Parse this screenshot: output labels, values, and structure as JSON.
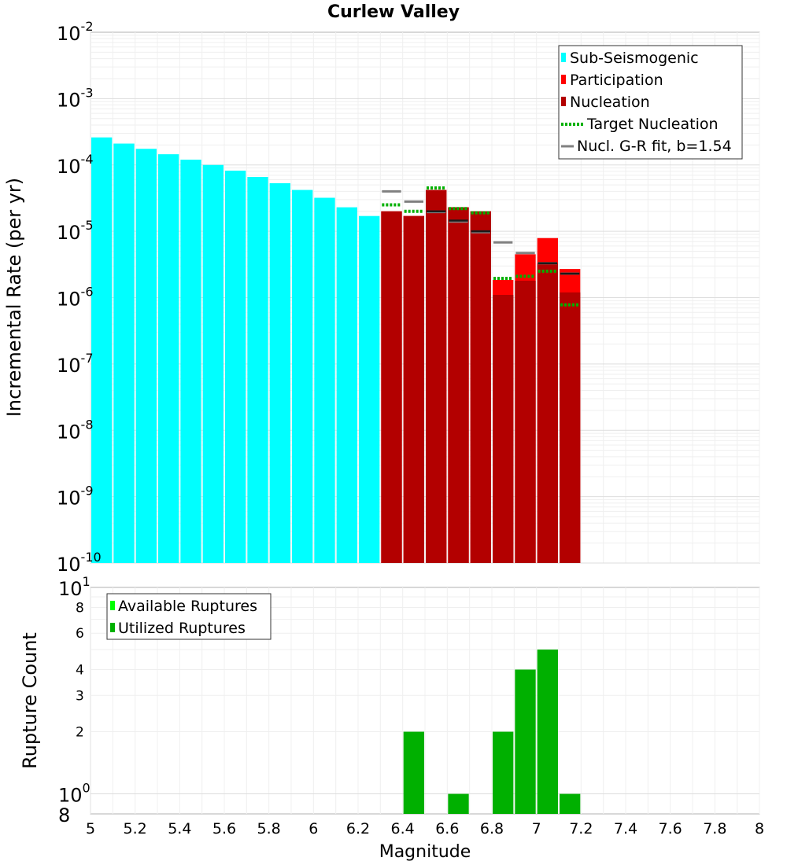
{
  "chart_data": [
    {
      "type": "bar",
      "title": "Curlew Valley",
      "ylabel": "Incremental Rate (per yr)",
      "xlabel": "",
      "yscale": "log",
      "xlim": [
        5,
        8
      ],
      "ylim": [
        1e-10,
        0.01
      ],
      "bin_width": 0.1,
      "y_ticks": [
        {
          "base": "10",
          "exp": "-10"
        },
        {
          "base": "10",
          "exp": "-9"
        },
        {
          "base": "10",
          "exp": "-8"
        },
        {
          "base": "10",
          "exp": "-7"
        },
        {
          "base": "10",
          "exp": "-6"
        },
        {
          "base": "10",
          "exp": "-5"
        },
        {
          "base": "10",
          "exp": "-4"
        },
        {
          "base": "10",
          "exp": "-3"
        },
        {
          "base": "10",
          "exp": "-2"
        }
      ],
      "legend": [
        {
          "label": "Sub-Seismogenic",
          "kind": "bar",
          "color": "#00ffff"
        },
        {
          "label": "Participation",
          "kind": "bar",
          "color": "#ff0000"
        },
        {
          "label": "Nucleation",
          "kind": "bar",
          "color": "#b30000"
        },
        {
          "label": "Target Nucleation",
          "kind": "dotted",
          "color": "#00b000"
        },
        {
          "label": "Nucl. G-R fit, b=1.54",
          "kind": "line",
          "color": "#808080"
        }
      ],
      "series": [
        {
          "name": "Sub-Seismogenic",
          "color": "#00ffff",
          "x": [
            5.05,
            5.15,
            5.25,
            5.35,
            5.45,
            5.55,
            5.65,
            5.75,
            5.85,
            5.95,
            6.05,
            6.15,
            6.25
          ],
          "values": [
            0.00026,
            0.00021,
            0.000175,
            0.000145,
            0.00012,
            0.0001,
            8.2e-05,
            6.6e-05,
            5.3e-05,
            4.2e-05,
            3.2e-05,
            2.3e-05,
            1.7e-05
          ]
        },
        {
          "name": "Participation",
          "color": "#ff0000",
          "x": [
            6.35,
            6.45,
            6.55,
            6.65,
            6.75,
            6.85,
            6.95,
            7.05,
            7.15
          ],
          "values": [
            2e-05,
            1.7e-05,
            4.2e-05,
            2.3e-05,
            2e-05,
            1.85e-06,
            4.5e-06,
            7.9e-06,
            2.7e-06
          ]
        },
        {
          "name": "Nucleation",
          "color": "#b30000",
          "x": [
            6.35,
            6.45,
            6.55,
            6.65,
            6.75,
            6.85,
            6.95,
            7.05,
            7.15
          ],
          "values": [
            2e-05,
            1.7e-05,
            4.2e-05,
            2.3e-05,
            2e-05,
            1.1e-06,
            1.8e-06,
            3.3e-06,
            1.2e-06
          ]
        },
        {
          "name": "Participation black marks",
          "color": "#1a1a1a",
          "x": [
            6.55,
            6.65,
            6.75,
            7.05,
            7.15
          ],
          "values": [
            2e-05,
            1.45e-05,
            1e-05,
            3.3e-06,
            2.3e-06
          ]
        },
        {
          "name": "Target Nucleation",
          "color": "#00b000",
          "x": [
            6.35,
            6.45,
            6.55,
            6.65,
            6.75,
            6.85,
            6.95,
            7.05,
            7.15
          ],
          "values": [
            2.5e-05,
            2e-05,
            4.5e-05,
            2.2e-05,
            1.9e-05,
            1.95e-06,
            2.1e-06,
            2.5e-06,
            7.8e-07
          ]
        },
        {
          "name": "Nucl. G-R fit, b=1.54",
          "color": "#808080",
          "x": [
            6.35,
            6.45,
            6.55,
            6.65,
            6.75,
            6.85,
            6.95,
            7.05,
            7.15
          ],
          "values": [
            4e-05,
            2.8e-05,
            1.95e-05,
            1.4e-05,
            9.7e-06,
            6.8e-06,
            4.7e-06,
            3.3e-06,
            2.3e-06
          ]
        }
      ]
    },
    {
      "type": "bar",
      "title": "",
      "ylabel": "Rupture Count",
      "xlabel": "Magnitude",
      "yscale": "log",
      "xlim": [
        5,
        8
      ],
      "ylim": [
        0.8,
        10
      ],
      "bin_width": 0.1,
      "x_ticks": [
        "5",
        "5.2",
        "5.4",
        "5.6",
        "5.8",
        "6",
        "6.2",
        "6.4",
        "6.6",
        "6.8",
        "7",
        "7.2",
        "7.4",
        "7.6",
        "7.8",
        "8"
      ],
      "y_ticks": [
        {
          "value": 0.8,
          "label": "8",
          "exp": ""
        },
        {
          "value": 1,
          "label": "10",
          "exp": "0"
        },
        {
          "value": 2,
          "label": "2",
          "exp": ""
        },
        {
          "value": 3,
          "label": "3",
          "exp": ""
        },
        {
          "value": 4,
          "label": "4",
          "exp": ""
        },
        {
          "value": 6,
          "label": "6",
          "exp": ""
        },
        {
          "value": 8,
          "label": "8",
          "exp": ""
        },
        {
          "value": 10,
          "label": "10",
          "exp": "1"
        }
      ],
      "legend": [
        {
          "label": "Available Ruptures",
          "kind": "bar",
          "color": "#00ff00"
        },
        {
          "label": "Utilized Ruptures",
          "kind": "bar",
          "color": "#00b000"
        }
      ],
      "series": [
        {
          "name": "Utilized Ruptures",
          "color": "#00b000",
          "x": [
            6.45,
            6.65,
            6.85,
            6.95,
            7.05,
            7.15
          ],
          "values": [
            2,
            1,
            2,
            4,
            5,
            1
          ]
        }
      ]
    }
  ]
}
